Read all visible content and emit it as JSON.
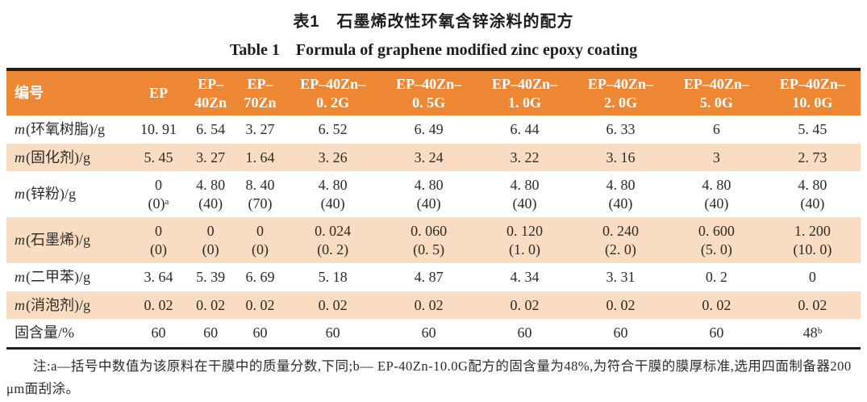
{
  "page": {
    "title_cn": "表1　石墨烯改性环氧含锌涂料的配方",
    "title_en": "Table 1　Formula of graphene modified zinc epoxy coating"
  },
  "table": {
    "columns": [
      "编号",
      "EP",
      "EP–\n40Zn",
      "EP–\n70Zn",
      "EP–40Zn–\n0. 2G",
      "EP–40Zn–\n0. 5G",
      "EP–40Zn–\n1. 0G",
      "EP–40Zn–\n2. 0G",
      "EP–40Zn–\n5. 0G",
      "EP–40Zn–\n10. 0G"
    ],
    "rows": [
      {
        "label_italic": "m",
        "label_rest": "(环氧树脂)/g",
        "values": [
          "10. 91",
          "6. 54",
          "3. 27",
          "6. 52",
          "6. 49",
          "6. 44",
          "6. 33",
          "6",
          "5. 45"
        ]
      },
      {
        "label_italic": "m",
        "label_rest": "(固化剂)/g",
        "values": [
          "5. 45",
          "3. 27",
          "1. 64",
          "3. 26",
          "3. 24",
          "3. 22",
          "3. 16",
          "3",
          "2. 73"
        ]
      },
      {
        "label_italic": "m",
        "label_rest": "(锌粉)/g",
        "values": [
          "0\n(0)ᵃ",
          "4. 80\n(40)",
          "8. 40\n(70)",
          "4. 80\n(40)",
          "4. 80\n(40)",
          "4. 80\n(40)",
          "4. 80\n(40)",
          "4. 80\n(40)",
          "4. 80\n(40)"
        ]
      },
      {
        "label_italic": "m",
        "label_rest": "(石墨烯)/g",
        "values": [
          "0\n(0)",
          "0\n(0)",
          "0\n(0)",
          "0. 024\n(0. 2)",
          "0. 060\n(0. 5)",
          "0. 120\n(1. 0)",
          "0. 240\n(2. 0)",
          "0. 600\n(5. 0)",
          "1. 200\n(10. 0)"
        ]
      },
      {
        "label_italic": "m",
        "label_rest": "(二甲苯)/g",
        "values": [
          "3. 64",
          "5. 39",
          "6. 69",
          "5. 18",
          "4. 87",
          "4. 34",
          "3. 31",
          "0. 2",
          "0"
        ]
      },
      {
        "label_italic": "m",
        "label_rest": "(消泡剂)/g",
        "values": [
          "0. 02",
          "0. 02",
          "0. 02",
          "0. 02",
          "0. 02",
          "0. 02",
          "0. 02",
          "0. 02",
          "0. 02"
        ]
      },
      {
        "label_italic": "",
        "label_rest": "固含量/%",
        "values": [
          "60",
          "60",
          "60",
          "60",
          "60",
          "60",
          "60",
          "60",
          "48ᵇ"
        ]
      }
    ]
  },
  "footnote": "注:a—括号中数值为该原料在干膜中的质量分数,下同;b— EP-40Zn-10.0G配方的固含量为48%,为符合干膜的膜厚标准,选用四面制备器200 μm面刮涂。",
  "colors": {
    "header_bg": "#ed8733",
    "row_alt_bg": "#fadcc2",
    "table_border": "#221d19",
    "header_text": "#ffffff",
    "body_text": "#2e2a26"
  }
}
